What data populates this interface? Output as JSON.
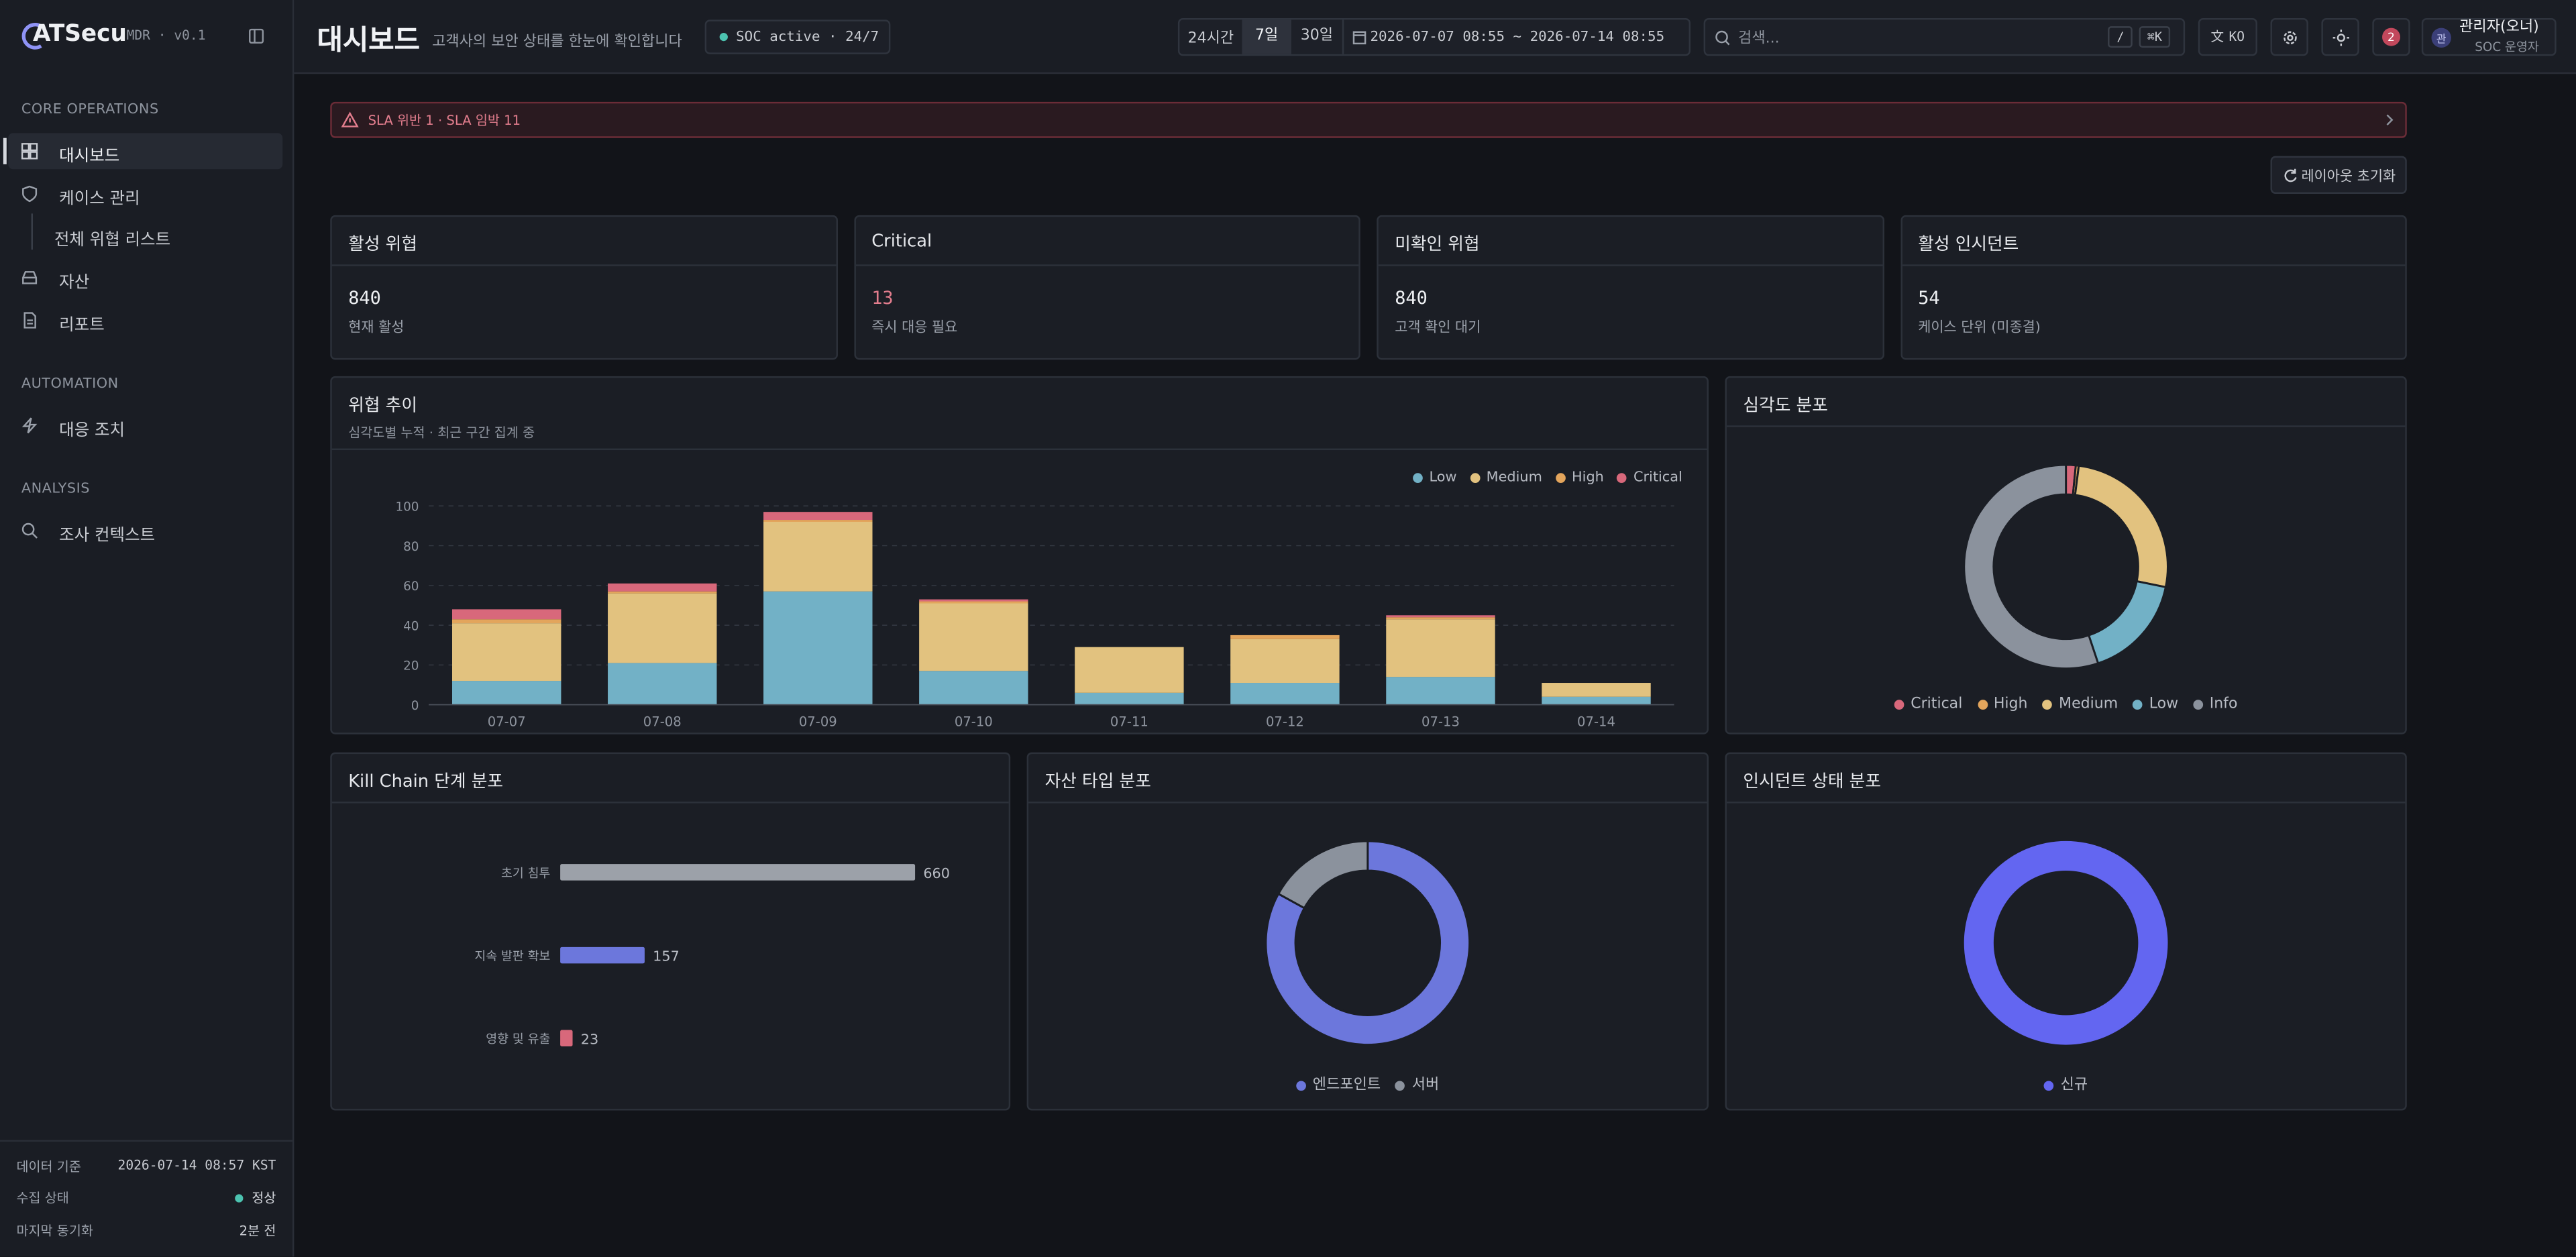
{
  "sidebar": {
    "logo": "ATSecu",
    "version": "MDR · v0.1",
    "sections": [
      {
        "title": "CORE OPERATIONS",
        "items": [
          "대시보드",
          "케이스 관리",
          "전체 위협 리스트",
          "자산",
          "리포트"
        ]
      },
      {
        "title": "AUTOMATION",
        "items": [
          "대응 조치"
        ]
      },
      {
        "title": "ANALYSIS",
        "items": [
          "조사 컨텍스트"
        ]
      }
    ],
    "footer": [
      {
        "label": "데이터 기준",
        "value": "2026-07-14 08:57 KST"
      },
      {
        "label": "수집 상태",
        "value": "정상"
      },
      {
        "label": "마지막 동기화",
        "value": "2분 전"
      }
    ]
  },
  "header": {
    "title": "대시보드",
    "subtitle": "고객사의 보안 상태를 한눈에 확인합니다",
    "status": "SOC active · 24/7",
    "ranges": [
      "24시간",
      "7일",
      "30일"
    ],
    "date_range": "2026-07-07 08:55 ~ 2026-07-14 08:55",
    "search_placeholder": "검색...",
    "shortcuts": [
      "/",
      "⌘K"
    ],
    "language": "KO",
    "notification_count": "2",
    "user_initial": "관",
    "user_name": "관리자(오너)",
    "user_role": "SOC 운영자"
  },
  "alert": "SLA 위반 1 · SLA 임박 11",
  "reset_button": "레이아웃 초기화",
  "stats": [
    {
      "title": "활성 위협",
      "value": 840,
      "caption": "현재 활성"
    },
    {
      "title": "Critical",
      "value": 13,
      "caption": "즉시 대응 필요"
    },
    {
      "title": "미확인 위협",
      "value": 840,
      "caption": "고객 확인 대기"
    },
    {
      "title": "활성 인시던트",
      "value": 54,
      "caption": "케이스 단위 (미종결)"
    }
  ],
  "chart_data": [
    {
      "type": "bar",
      "stacked": true,
      "title": "위협 추이",
      "subtitle": "심각도별 누적 · 최근 구간 집계 중",
      "categories": [
        "07-07",
        "07-08",
        "07-09",
        "07-10",
        "07-11",
        "07-12",
        "07-13",
        "07-14"
      ],
      "series": [
        {
          "name": "Low",
          "color": "#72b1c6",
          "values": [
            12,
            21,
            57,
            17,
            6,
            11,
            14,
            4
          ]
        },
        {
          "name": "Medium",
          "color": "#e2c27f",
          "values": [
            29,
            35,
            35,
            34,
            23,
            22,
            29,
            7
          ]
        },
        {
          "name": "High",
          "color": "#e3a55c",
          "values": [
            2,
            1,
            1,
            1,
            0,
            2,
            1,
            0
          ]
        },
        {
          "name": "Critical",
          "color": "#d8687b",
          "values": [
            5,
            4,
            4,
            1,
            0,
            0,
            1,
            0
          ]
        }
      ],
      "ylim": [
        0,
        100
      ],
      "yticks": [
        0,
        20,
        40,
        60,
        80,
        100
      ],
      "grid": true,
      "legend": "top-right"
    },
    {
      "type": "pie",
      "donut": true,
      "title": "심각도 분포",
      "categories": [
        "Critical",
        "High",
        "Medium",
        "Low",
        "Info"
      ],
      "values": [
        13,
        4,
        220,
        140,
        463
      ],
      "colors": [
        "#d8687b",
        "#e3a55c",
        "#e2c27f",
        "#72b1c6",
        "#8b929d"
      ],
      "legend": "bottom"
    },
    {
      "type": "bar",
      "orientation": "horizontal",
      "title": "Kill Chain 단계 분포",
      "categories": [
        "초기 침투",
        "지속 발판 확보",
        "영향 및 유출"
      ],
      "values": [
        660,
        157,
        23
      ],
      "colors": [
        "#9ca1a9",
        "#6c77dc",
        "#d8687b"
      ],
      "xlim": [
        0,
        660
      ]
    },
    {
      "type": "pie",
      "donut": true,
      "title": "자산 타입 분포",
      "categories": [
        "엔드포인트",
        "서버"
      ],
      "values": [
        83,
        17
      ],
      "colors": [
        "#6c77dc",
        "#8b929d"
      ],
      "legend": "bottom"
    },
    {
      "type": "pie",
      "donut": true,
      "title": "인시던트 상태 분포",
      "categories": [
        "신규"
      ],
      "values": [
        54
      ],
      "colors": [
        "#6366f1"
      ],
      "legend": "bottom"
    }
  ]
}
